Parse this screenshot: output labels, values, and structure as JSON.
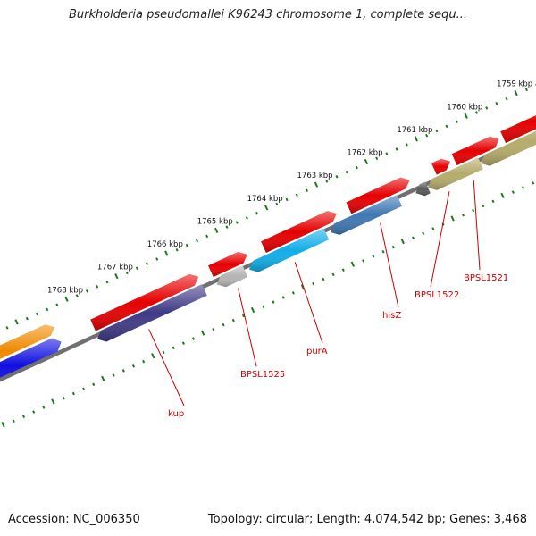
{
  "title": "Burkholderia pseudomallei K96243 chromosome 1, complete sequ...",
  "footer": {
    "accession": "Accession: NC_006350",
    "stats": "Topology: circular; Length: 4,074,542 bp; Genes: 3,468"
  },
  "colors": {
    "backbone": "#707070",
    "ticks": "#1c7a1c",
    "label": "#cc0000",
    "forward_cds": "#e60000",
    "orange": "#f08a00",
    "blue": "#1010e0",
    "purple": "#3f3a86",
    "gray": "#b4b4b4",
    "cyan": "#12aee8",
    "steelblue": "#3f78b4",
    "khaki": "#b5ac6a",
    "darkgray": "#5a5a5a"
  },
  "ruler": {
    "unit": "kbp",
    "ticks": [
      "1759 kbp",
      "1760 kbp",
      "1761 kbp",
      "1762 kbp",
      "1763 kbp",
      "1764 kbp",
      "1765 kbp",
      "1766 kbp",
      "1767 kbp",
      "1768 kbp"
    ]
  },
  "gene_labels": [
    "BPSL1521",
    "BPSL1522",
    "hisZ",
    "purA",
    "BPSL1525",
    "kup"
  ]
}
